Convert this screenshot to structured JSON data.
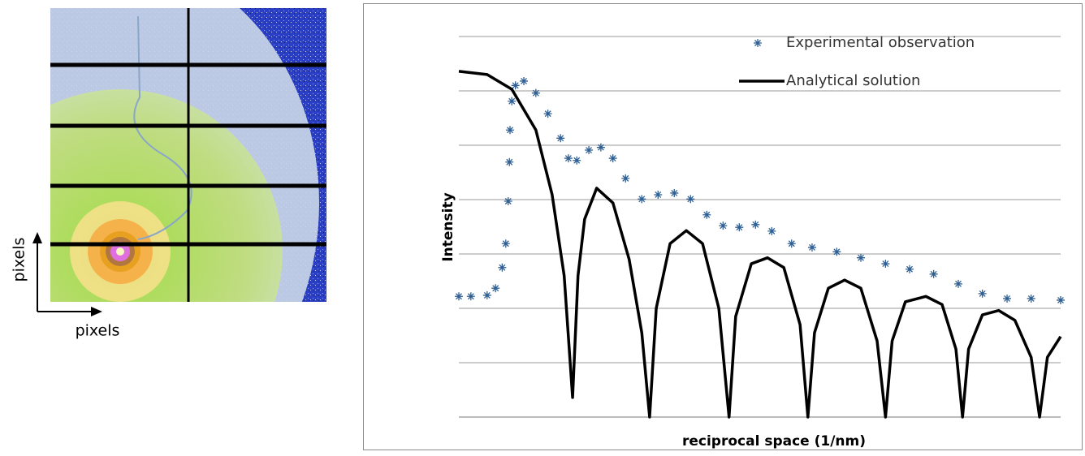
{
  "detector_image": {
    "x_label": "pixels",
    "y_label": "pixels"
  },
  "chart_data": {
    "type": "line",
    "x_label": "reciprocal space (1/nm)",
    "y_label": "Intensity",
    "xlim": [
      0,
      10
    ],
    "ylim": [
      0,
      7
    ],
    "yticks": [
      0,
      1,
      2,
      3,
      4,
      5,
      6,
      7
    ],
    "grid": true,
    "legend": "upper right",
    "series": [
      {
        "name": "Experimental observation",
        "color": "#2f5f93",
        "mode": "markers",
        "x": [
          0,
          0.2,
          0.47,
          0.61,
          0.72,
          0.78,
          0.82,
          0.84,
          0.85,
          0.88,
          0.94,
          1.08,
          1.28,
          1.48,
          1.69,
          1.82,
          1.96,
          2.16,
          2.36,
          2.56,
          2.77,
          3.04,
          3.31,
          3.58,
          3.85,
          4.12,
          4.39,
          4.66,
          4.93,
          5.2,
          5.53,
          5.87,
          6.28,
          6.68,
          7.09,
          7.49,
          7.89,
          8.3,
          8.7,
          9.11,
          9.51,
          10
        ],
        "values": [
          2.22,
          2.22,
          2.24,
          2.37,
          2.75,
          3.19,
          3.97,
          4.69,
          5.28,
          5.81,
          6.1,
          6.18,
          5.96,
          5.58,
          5.13,
          4.76,
          4.72,
          4.91,
          4.96,
          4.76,
          4.39,
          4.01,
          4.09,
          4.12,
          4.01,
          3.72,
          3.52,
          3.49,
          3.54,
          3.42,
          3.19,
          3.12,
          3.04,
          2.93,
          2.82,
          2.72,
          2.63,
          2.45,
          2.27,
          2.18,
          2.18,
          2.15
        ]
      },
      {
        "name": "Analytical solution",
        "color": "#000000",
        "mode": "line",
        "x": [
          0,
          0.47,
          0.88,
          1.28,
          1.55,
          1.75,
          1.89,
          1.98,
          2.09,
          2.29,
          2.56,
          2.83,
          3.04,
          3.17,
          3.28,
          3.51,
          3.78,
          4.05,
          4.32,
          4.49,
          4.6,
          4.86,
          5.13,
          5.4,
          5.67,
          5.8,
          5.91,
          6.14,
          6.41,
          6.68,
          6.95,
          7.09,
          7.2,
          7.42,
          7.76,
          8.03,
          8.26,
          8.37,
          8.47,
          8.7,
          8.97,
          9.24,
          9.51,
          9.65,
          9.78,
          10
        ],
        "values": [
          6.36,
          6.3,
          6.03,
          5.28,
          4.09,
          2.6,
          0.36,
          2.6,
          3.64,
          4.21,
          3.94,
          2.9,
          1.55,
          0,
          2.0,
          3.19,
          3.43,
          3.19,
          2.0,
          0,
          1.85,
          2.82,
          2.93,
          2.75,
          1.7,
          0,
          1.55,
          2.37,
          2.52,
          2.37,
          1.4,
          0,
          1.4,
          2.12,
          2.22,
          2.07,
          1.25,
          0,
          1.25,
          1.88,
          1.96,
          1.78,
          1.1,
          0,
          1.1,
          1.48
        ]
      }
    ]
  }
}
